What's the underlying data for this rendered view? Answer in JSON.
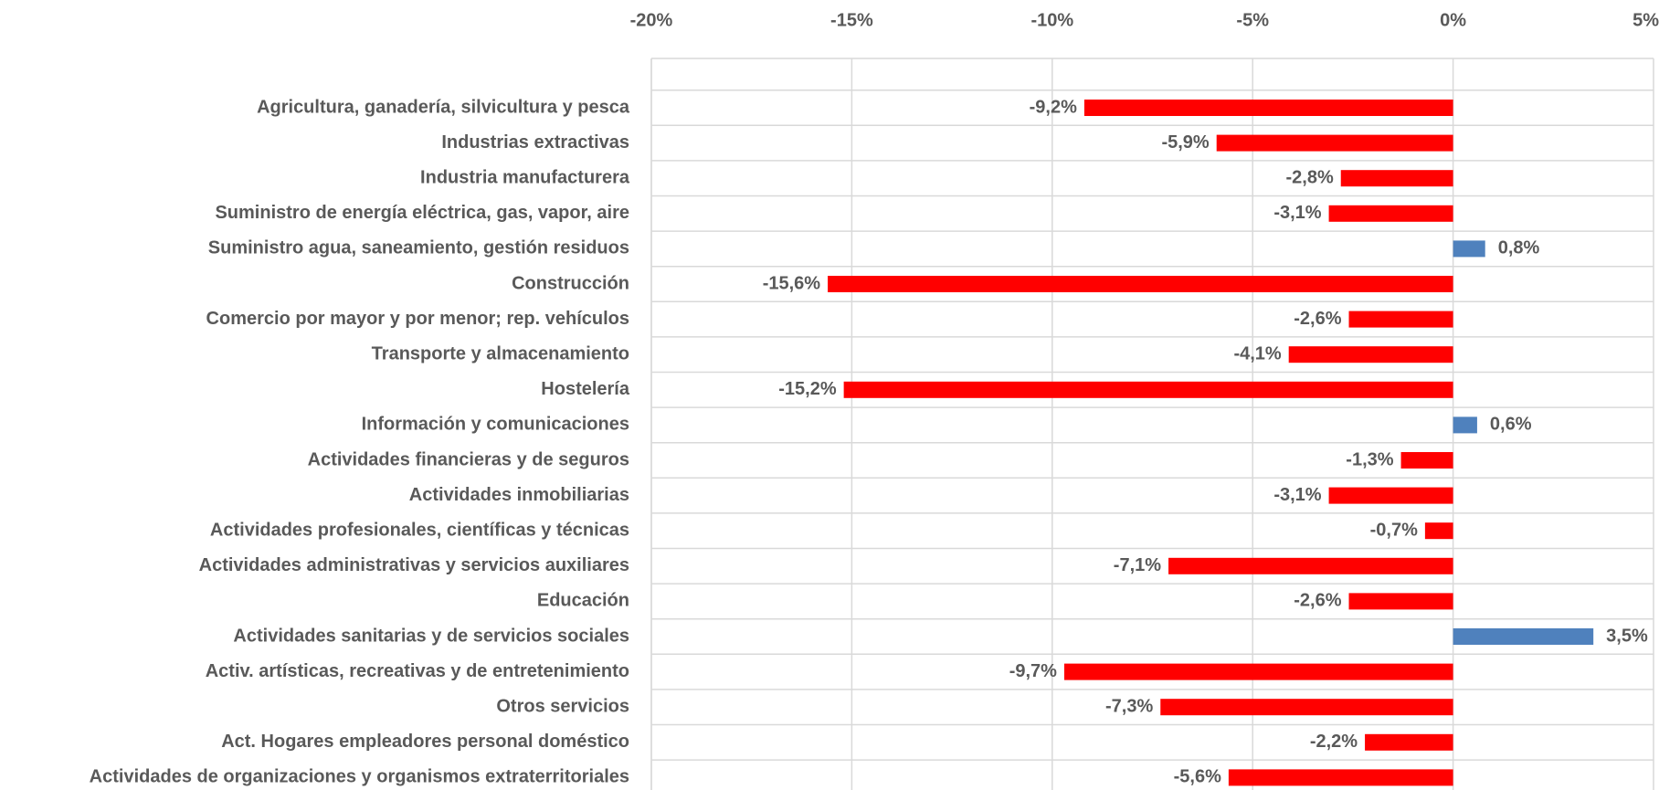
{
  "chart_data": {
    "type": "hbar",
    "categories": [
      "Agricultura, ganadería, silvicultura y pesca",
      "Industrias extractivas",
      "Industria manufacturera",
      "Suministro de energía eléctrica, gas, vapor, aire",
      "Suministro agua, saneamiento, gestión residuos",
      "Construcción",
      "Comercio por mayor y por menor; rep. vehículos",
      "Transporte y almacenamiento",
      "Hostelería",
      "Información y comunicaciones",
      "Actividades financieras y de seguros",
      "Actividades inmobiliarias",
      "Actividades profesionales, científicas y técnicas",
      "Actividades administrativas y servicios auxiliares",
      "Educación",
      "Actividades sanitarias y de servicios sociales",
      "Activ. artísticas, recreativas y de entretenimiento",
      "Otros servicios",
      "Act. Hogares empleadores personal doméstico",
      "Actividades de organizaciones y organismos extraterritoriales"
    ],
    "values": [
      -9.2,
      -5.9,
      -2.8,
      -3.1,
      0.8,
      -15.6,
      -2.6,
      -4.1,
      -15.2,
      0.6,
      -1.3,
      -3.1,
      -0.7,
      -7.1,
      -2.6,
      3.5,
      -9.7,
      -7.3,
      -2.2,
      -5.6
    ],
    "value_labels": [
      "-9,2%",
      "-5,9%",
      "-2,8%",
      "-3,1%",
      "0,8%",
      "-15,6%",
      "-2,6%",
      "-4,1%",
      "-15,2%",
      "0,6%",
      "-1,3%",
      "-3,1%",
      "-0,7%",
      "-7,1%",
      "-2,6%",
      "3,5%",
      "-9,7%",
      "-7,3%",
      "-2,2%",
      "-5,6%"
    ],
    "colors": [
      "#ff0000",
      "#ff0000",
      "#ff0000",
      "#ff0000",
      "#4f81bd",
      "#ff0000",
      "#ff0000",
      "#ff0000",
      "#ff0000",
      "#4f81bd",
      "#ff0000",
      "#ff0000",
      "#ff0000",
      "#ff0000",
      "#ff0000",
      "#4f81bd",
      "#ff0000",
      "#ff0000",
      "#ff0000",
      "#ff0000"
    ],
    "xlim": [
      -20,
      5
    ],
    "xticks": [
      {
        "value": -20,
        "label": "-20%"
      },
      {
        "value": -15,
        "label": "-15%"
      },
      {
        "value": -10,
        "label": "-10%"
      },
      {
        "value": -5,
        "label": "-5%"
      },
      {
        "value": 0,
        "label": "0%"
      },
      {
        "value": 5,
        "label": "5%"
      }
    ],
    "grid": true
  }
}
